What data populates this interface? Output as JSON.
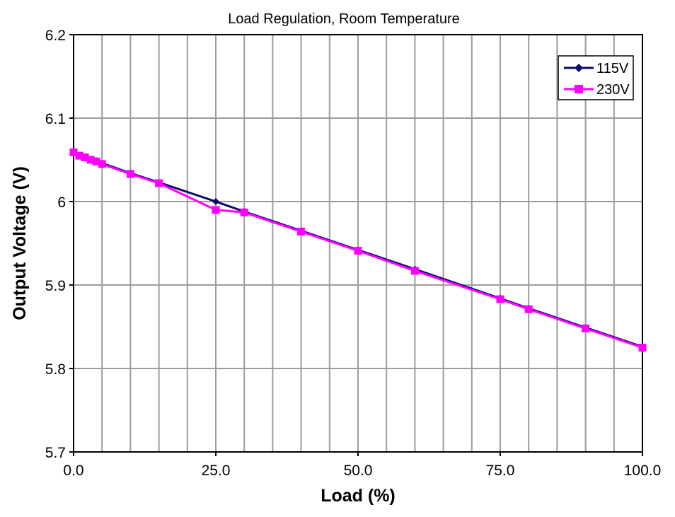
{
  "chart_data": {
    "type": "line",
    "title": "Load Regulation, Room Temperature",
    "xlabel": "Load (%)",
    "ylabel": "Output Voltage (V)",
    "xlim": [
      0,
      100
    ],
    "ylim": [
      5.7,
      6.2
    ],
    "x_ticks": [
      0,
      25,
      50,
      75,
      100
    ],
    "x_tick_labels": [
      "0.0",
      "25.0",
      "50.0",
      "75.0",
      "100.0"
    ],
    "y_ticks": [
      5.7,
      5.8,
      5.9,
      6.0,
      6.1,
      6.2
    ],
    "y_tick_labels": [
      "5.7",
      "5.8",
      "5.9",
      "6",
      "6.1",
      "6.2"
    ],
    "grid": true,
    "legend_position": "top-right",
    "series": [
      {
        "name": "115V",
        "color": "#0a0a6e",
        "marker": "diamond",
        "x": [
          0,
          1,
          2,
          3,
          4,
          5,
          10,
          15,
          25,
          30,
          40,
          50,
          60,
          75,
          80,
          90,
          100
        ],
        "y": [
          6.059,
          6.055,
          6.053,
          6.051,
          6.049,
          6.046,
          6.034,
          6.023,
          6.0,
          5.988,
          5.965,
          5.942,
          5.919,
          5.884,
          5.872,
          5.849,
          5.826
        ]
      },
      {
        "name": "230V",
        "color": "#ff00ff",
        "marker": "square",
        "x": [
          0,
          1,
          2,
          3,
          4,
          5,
          10,
          15,
          25,
          30,
          40,
          50,
          60,
          75,
          80,
          90,
          100
        ],
        "y": [
          6.059,
          6.055,
          6.053,
          6.05,
          6.048,
          6.045,
          6.033,
          6.022,
          5.99,
          5.987,
          5.964,
          5.941,
          5.917,
          5.883,
          5.871,
          5.848,
          5.825
        ]
      }
    ]
  }
}
